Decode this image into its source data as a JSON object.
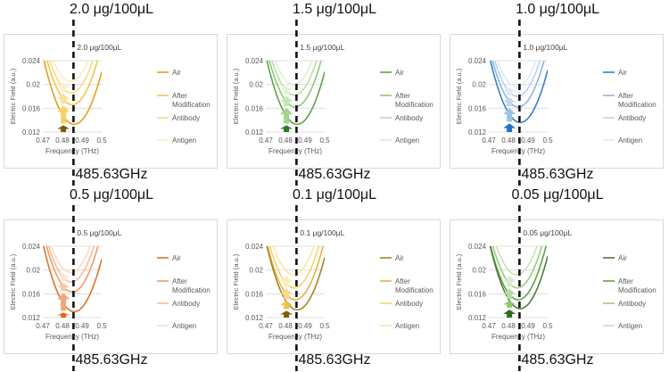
{
  "figure": {
    "vertical_line_note": "dashed vertical line at 485.63 GHz in each panel"
  },
  "chart_data": [
    {
      "type": "line",
      "title": "2.0 μg/100μL",
      "marker_label": "2.0 μg/100μL",
      "frequency_label": "485.63GHz",
      "xlabel": "Frequency (THz)",
      "ylabel": "Electric Field (a.u.)",
      "xlim": [
        0.47,
        0.5
      ],
      "ylim": [
        0.012,
        0.024
      ],
      "xticks": [
        "0.47",
        "0.48",
        "0.49",
        "0.5"
      ],
      "yticks": [
        "0.012",
        "0.016",
        "0.02",
        "0.024"
      ],
      "dashed_line_x": 0.48563,
      "series": [
        {
          "name": "Air",
          "color": "#E0A020",
          "min_x": 0.486,
          "min_y": 0.0133
        },
        {
          "name": "After Modification",
          "color": "#F3C64E",
          "min_x": 0.485,
          "min_y": 0.0166
        },
        {
          "name": "Antibody",
          "color": "#FAD98A",
          "min_x": 0.4845,
          "min_y": 0.0186
        },
        {
          "name": "Antigen",
          "color": "#FDEBC0",
          "min_x": 0.4842,
          "min_y": 0.0205
        }
      ],
      "legend": [
        "Air",
        "After\nModification",
        "Antibody",
        "Antigen"
      ],
      "arrow_colors": [
        "#7A5A0C",
        "#F6D266",
        "#FBE199",
        "#FDF0CC"
      ]
    },
    {
      "type": "line",
      "title": "1.5 μg/100μL",
      "marker_label": "1.5 μg/100μL",
      "frequency_label": "485.63GHz",
      "xlabel": "Frequency (THz)",
      "ylabel": "Electric Field (a.u.)",
      "xlim": [
        0.47,
        0.5
      ],
      "ylim": [
        0.012,
        0.024
      ],
      "xticks": [
        "0.47",
        "0.48",
        "0.49",
        "0.5"
      ],
      "yticks": [
        "0.012",
        "0.016",
        "0.02",
        "0.024"
      ],
      "dashed_line_x": 0.48563,
      "series": [
        {
          "name": "Air",
          "color": "#5FA24A",
          "min_x": 0.486,
          "min_y": 0.0133
        },
        {
          "name": "After Modification",
          "color": "#8CCB72",
          "min_x": 0.485,
          "min_y": 0.0162
        },
        {
          "name": "Antibody",
          "color": "#B8E0A6",
          "min_x": 0.4845,
          "min_y": 0.0182
        },
        {
          "name": "Antigen",
          "color": "#DCEFD2",
          "min_x": 0.4842,
          "min_y": 0.02
        }
      ],
      "legend": [
        "Air",
        "After\nModification",
        "Antibody",
        "Antigen"
      ],
      "arrow_colors": [
        "#2E7A24",
        "#9ED58A",
        "#C3E6B5",
        "#E3F3DB"
      ]
    },
    {
      "type": "line",
      "title": "1.0 μg/100μL",
      "marker_label": "1.0 μg/100μL",
      "frequency_label": "485.63GHz",
      "xlabel": "Frequency (THz)",
      "ylabel": "Electric Field (a.u.)",
      "xlim": [
        0.47,
        0.5
      ],
      "ylim": [
        0.012,
        0.024
      ],
      "xticks": [
        "0.47",
        "0.48",
        "0.49",
        "0.5"
      ],
      "yticks": [
        "0.012",
        "0.016",
        "0.02",
        "0.024"
      ],
      "dashed_line_x": 0.48563,
      "series": [
        {
          "name": "Air",
          "color": "#3A7FC4",
          "min_x": 0.486,
          "min_y": 0.0136
        },
        {
          "name": "After Modification",
          "color": "#8EB6E0",
          "min_x": 0.485,
          "min_y": 0.0162
        },
        {
          "name": "Antibody",
          "color": "#B8D2EE",
          "min_x": 0.4845,
          "min_y": 0.018
        },
        {
          "name": "Antigen",
          "color": "#DDE9F7",
          "min_x": 0.4842,
          "min_y": 0.0196
        }
      ],
      "legend": [
        "Air",
        "After\nModification",
        "Antibody",
        "Antigen"
      ],
      "arrow_colors": [
        "#1F73C7",
        "#9CC2E8",
        "#BFD7F0",
        "#DEEAF8"
      ]
    },
    {
      "type": "line",
      "title": "0.5 μg/100μL",
      "marker_label": "0.5 μg/100μL",
      "frequency_label": "485.63GHz",
      "xlabel": "Frequency (THz)",
      "ylabel": "Electric Field (a.u.)",
      "xlim": [
        0.47,
        0.5
      ],
      "ylim": [
        0.012,
        0.024
      ],
      "xticks": [
        "0.47",
        "0.48",
        "0.49",
        "0.5"
      ],
      "yticks": [
        "0.012",
        "0.016",
        "0.02",
        "0.024"
      ],
      "dashed_line_x": 0.48563,
      "series": [
        {
          "name": "Air",
          "color": "#D9752E",
          "min_x": 0.486,
          "min_y": 0.013
        },
        {
          "name": "After Modification",
          "color": "#F29A62",
          "min_x": 0.485,
          "min_y": 0.0163
        },
        {
          "name": "Antibody",
          "color": "#F7BE98",
          "min_x": 0.4845,
          "min_y": 0.018
        },
        {
          "name": "Antigen",
          "color": "#FBDCC6",
          "min_x": 0.4842,
          "min_y": 0.0196
        }
      ],
      "legend": [
        "Air",
        "After\nModification",
        "Antibody",
        "Antigen"
      ],
      "arrow_colors": [
        "#E8661F",
        "#F5A57A",
        "#F9C8A8",
        "#FCE3D2"
      ]
    },
    {
      "type": "line",
      "title": "0.1 μg/100μL",
      "marker_label": "0.1 μg/100μL",
      "frequency_label": "485.63GHz",
      "xlabel": "Frequency (THz)",
      "ylabel": "Electric Field (a.u.)",
      "xlim": [
        0.47,
        0.5
      ],
      "ylim": [
        0.012,
        0.024
      ],
      "xticks": [
        "0.47",
        "0.48",
        "0.49",
        "0.5"
      ],
      "yticks": [
        "0.012",
        "0.016",
        "0.02",
        "0.024"
      ],
      "dashed_line_x": 0.48563,
      "series": [
        {
          "name": "Air",
          "color": "#A8842A",
          "min_x": 0.486,
          "min_y": 0.0133
        },
        {
          "name": "After Modification",
          "color": "#E3B43A",
          "min_x": 0.485,
          "min_y": 0.015
        },
        {
          "name": "Antibody",
          "color": "#F6D36B",
          "min_x": 0.4845,
          "min_y": 0.017
        },
        {
          "name": "Antigen",
          "color": "#FBE6A6",
          "min_x": 0.4842,
          "min_y": 0.0192
        }
      ],
      "legend": [
        "Air",
        "After\nModification",
        "Antibody",
        "Antigen"
      ],
      "arrow_colors": [
        "#7E5E10",
        "#F0C24A",
        "#F8DC86",
        "#FCEDBE"
      ]
    },
    {
      "type": "line",
      "title": "0.05 μg/100μL",
      "marker_label": "0.05 μg/100μL",
      "frequency_label": "485.63GHz",
      "xlabel": "Frequency (THz)",
      "ylabel": "Electric Field (a.u.)",
      "xlim": [
        0.47,
        0.5
      ],
      "ylim": [
        0.012,
        0.024
      ],
      "xticks": [
        "0.47",
        "0.48",
        "0.49",
        "0.5"
      ],
      "yticks": [
        "0.012",
        "0.016",
        "0.02",
        "0.024"
      ],
      "dashed_line_x": 0.48563,
      "series": [
        {
          "name": "Air",
          "color": "#4C7C3C",
          "min_x": 0.486,
          "min_y": 0.0135
        },
        {
          "name": "After Modification",
          "color": "#5FA24A",
          "min_x": 0.485,
          "min_y": 0.015
        },
        {
          "name": "Antibody",
          "color": "#9ACB82",
          "min_x": 0.4845,
          "min_y": 0.017
        },
        {
          "name": "Antigen",
          "color": "#C8E4BA",
          "min_x": 0.4842,
          "min_y": 0.0192
        }
      ],
      "legend": [
        "Air",
        "After\nModification",
        "Antibody",
        "Antigen"
      ],
      "arrow_colors": [
        "#2E6E22",
        "#8CC873",
        "#B3DCA2",
        "#D8EDCE"
      ]
    }
  ]
}
